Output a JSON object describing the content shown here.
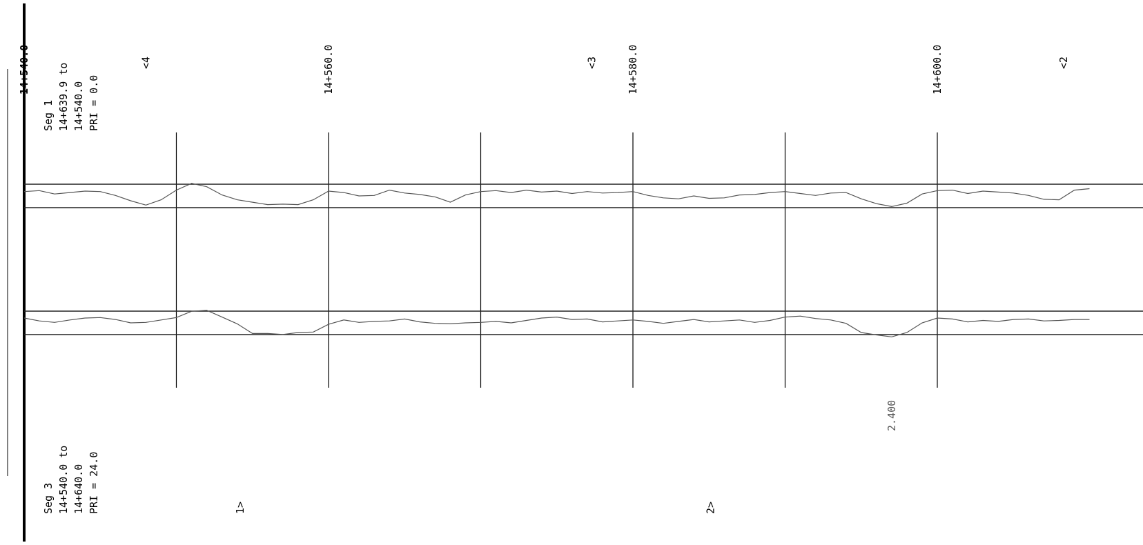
{
  "chart_data": {
    "type": "line",
    "title": "",
    "xlabel": "",
    "ylabel": "",
    "x_range": [
      14540.0,
      14610.0
    ],
    "grid": true,
    "station_labels": [
      "14+540.0",
      "14+560.0",
      "14+580.0",
      "14+600.0"
    ],
    "station_values": [
      14540.0,
      14560.0,
      14580.0,
      14600.0
    ],
    "gridline_stations": [
      14550.0,
      14560.0,
      14570.0,
      14580.0,
      14590.0,
      14600.0
    ],
    "top_markers": [
      "<4",
      "<3",
      "<2"
    ],
    "top_marker_stations": [
      14548.0,
      14577.3,
      14608.3
    ],
    "bottom_markers": [
      "1>",
      "2>"
    ],
    "bottom_marker_stations": [
      14554.2,
      14585.1
    ],
    "segments": [
      {
        "label": "Seg 1",
        "range_line": "14+639.9 to",
        "end_line": "14+540.0",
        "pri": "PRI = 0.0",
        "position": "top"
      },
      {
        "label": "Seg 3",
        "range_line": "14+540.0 to",
        "end_line": "14+640.0",
        "pri": "PRI = 24.0",
        "position": "bottom"
      }
    ],
    "annotation": {
      "text": "2.400",
      "station": 14597.0
    },
    "series": [
      {
        "x": [
          14540.0,
          14541.0,
          14542.0,
          14543.0,
          14544.0,
          14545.0,
          14546.0,
          14547.0,
          14548.0,
          14549.0,
          14550.0,
          14551.0,
          14552.0,
          14553.0,
          14554.0,
          14555.0,
          14556.0,
          14557.0,
          14558.0,
          14559.0,
          14560.0,
          14561.0,
          14562.0,
          14563.0,
          14564.0,
          14565.0,
          14566.0,
          14567.0,
          14568.0,
          14569.0,
          14570.0,
          14571.0,
          14572.0,
          14573.0,
          14574.0,
          14575.0,
          14576.0,
          14577.0,
          14578.0,
          14579.0,
          14580.0,
          14581.0,
          14582.0,
          14583.0,
          14584.0,
          14585.0,
          14586.0,
          14587.0,
          14588.0,
          14589.0,
          14590.0,
          14591.0,
          14592.0,
          14593.0,
          14594.0,
          14595.0,
          14596.0,
          14597.0,
          14598.0,
          14599.0,
          14600.0,
          14601.0,
          14602.0,
          14603.0,
          14604.0,
          14605.0,
          14606.0,
          14607.0,
          14608.0,
          14609.0,
          14610.0
        ],
        "y": [
          0.45,
          0.55,
          0.2,
          0.35,
          0.5,
          0.45,
          0.05,
          -0.5,
          -0.95,
          -0.4,
          0.6,
          1.3,
          0.95,
          0.1,
          -0.4,
          -0.65,
          -0.9,
          -0.85,
          -0.9,
          -0.4,
          0.5,
          0.35,
          0.0,
          0.05,
          0.6,
          0.3,
          0.15,
          -0.1,
          -0.65,
          0.1,
          0.45,
          0.55,
          0.35,
          0.6,
          0.4,
          0.5,
          0.25,
          0.45,
          0.3,
          0.35,
          0.45,
          0.05,
          -0.2,
          -0.3,
          0.0,
          -0.25,
          -0.2,
          0.1,
          0.15,
          0.35,
          0.45,
          0.25,
          0.05,
          0.3,
          0.35,
          -0.3,
          -0.8,
          -1.1,
          -0.75,
          0.2,
          0.55,
          0.6,
          0.25,
          0.5,
          0.4,
          0.3,
          0.05,
          -0.35,
          -0.4,
          0.6,
          0.75
        ]
      },
      {
        "x": [
          14540.0,
          14541.0,
          14542.0,
          14543.0,
          14544.0,
          14545.0,
          14546.0,
          14547.0,
          14548.0,
          14549.0,
          14550.0,
          14551.0,
          14552.0,
          14553.0,
          14554.0,
          14555.0,
          14556.0,
          14557.0,
          14558.0,
          14559.0,
          14560.0,
          14561.0,
          14562.0,
          14563.0,
          14564.0,
          14565.0,
          14566.0,
          14567.0,
          14568.0,
          14569.0,
          14570.0,
          14571.0,
          14572.0,
          14573.0,
          14574.0,
          14575.0,
          14576.0,
          14577.0,
          14578.0,
          14579.0,
          14580.0,
          14581.0,
          14582.0,
          14583.0,
          14584.0,
          14585.0,
          14586.0,
          14587.0,
          14588.0,
          14589.0,
          14590.0,
          14591.0,
          14592.0,
          14593.0,
          14594.0,
          14595.0,
          14596.0,
          14597.0,
          14598.0,
          14599.0,
          14600.0,
          14601.0,
          14602.0,
          14603.0,
          14604.0,
          14605.0,
          14606.0,
          14607.0,
          14608.0,
          14609.0,
          14610.0
        ],
        "y": [
          0.5,
          0.2,
          0.05,
          0.3,
          0.5,
          0.55,
          0.35,
          0.0,
          0.05,
          0.3,
          0.55,
          1.2,
          1.3,
          0.6,
          -0.1,
          -1.1,
          -1.1,
          -1.2,
          -1.0,
          -0.95,
          -0.15,
          0.3,
          0.05,
          0.15,
          0.2,
          0.4,
          0.1,
          -0.05,
          -0.1,
          0.0,
          0.05,
          0.15,
          0.0,
          0.25,
          0.5,
          0.6,
          0.35,
          0.4,
          0.1,
          0.2,
          0.3,
          0.15,
          -0.05,
          0.15,
          0.35,
          0.1,
          0.2,
          0.3,
          0.05,
          0.25,
          0.6,
          0.7,
          0.45,
          0.3,
          -0.05,
          -1.0,
          -1.25,
          -1.45,
          -1.0,
          0.0,
          0.5,
          0.4,
          0.1,
          0.25,
          0.15,
          0.35,
          0.4,
          0.2,
          0.25,
          0.35,
          0.35
        ]
      }
    ]
  }
}
